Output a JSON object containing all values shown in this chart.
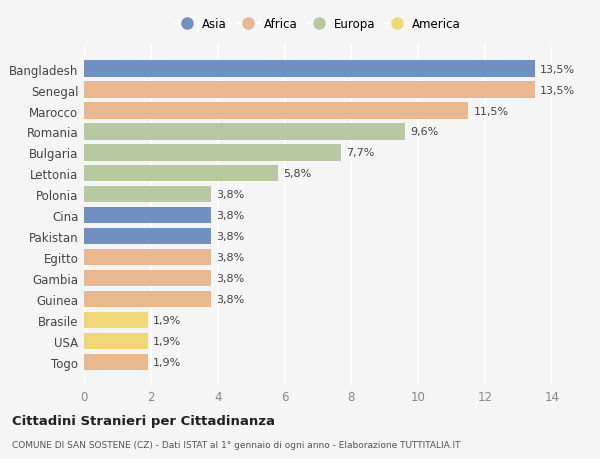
{
  "countries": [
    "Bangladesh",
    "Senegal",
    "Marocco",
    "Romania",
    "Bulgaria",
    "Lettonia",
    "Polonia",
    "Cina",
    "Pakistan",
    "Egitto",
    "Gambia",
    "Guinea",
    "Brasile",
    "USA",
    "Togo"
  ],
  "values": [
    13.5,
    13.5,
    11.5,
    9.6,
    7.7,
    5.8,
    3.8,
    3.8,
    3.8,
    3.8,
    3.8,
    3.8,
    1.9,
    1.9,
    1.9
  ],
  "labels": [
    "13,5%",
    "13,5%",
    "11,5%",
    "9,6%",
    "7,7%",
    "5,8%",
    "3,8%",
    "3,8%",
    "3,8%",
    "3,8%",
    "3,8%",
    "3,8%",
    "1,9%",
    "1,9%",
    "1,9%"
  ],
  "categories": [
    "Asia",
    "Africa",
    "Africa",
    "Europa",
    "Europa",
    "Europa",
    "Europa",
    "Asia",
    "Asia",
    "Africa",
    "Africa",
    "Africa",
    "America",
    "America",
    "Africa"
  ],
  "colors": {
    "Asia": "#7090c0",
    "Africa": "#e8b890",
    "Europa": "#b8c8a0",
    "America": "#f0d878"
  },
  "legend_order": [
    "Asia",
    "Africa",
    "Europa",
    "America"
  ],
  "title": "Cittadini Stranieri per Cittadinanza",
  "subtitle": "COMUNE DI SAN SOSTENE (CZ) - Dati ISTAT al 1° gennaio di ogni anno - Elaborazione TUTTITALIA.IT",
  "xlim": [
    0,
    14
  ],
  "xticks": [
    0,
    2,
    4,
    6,
    8,
    10,
    12,
    14
  ],
  "background_color": "#f5f5f5",
  "grid_color": "#ffffff",
  "bar_height": 0.78,
  "label_fontsize": 8,
  "ytick_fontsize": 8.5,
  "xtick_fontsize": 8.5
}
